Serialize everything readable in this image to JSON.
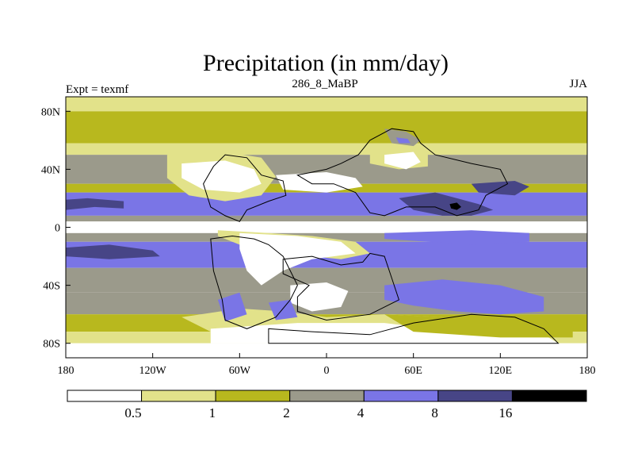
{
  "chart_data": {
    "type": "heatmap",
    "title": "Precipitation (in mm/day)",
    "left_label": "Expt = texmf",
    "center_label": "286_8_MaBP",
    "right_label": "JJA",
    "x_ticks": [
      {
        "value": -180,
        "label": "180"
      },
      {
        "value": -120,
        "label": "120W"
      },
      {
        "value": -60,
        "label": "60W"
      },
      {
        "value": 0,
        "label": "0"
      },
      {
        "value": 60,
        "label": "60E"
      },
      {
        "value": 120,
        "label": "120E"
      },
      {
        "value": 180,
        "label": "180"
      }
    ],
    "y_ticks": [
      {
        "value": 80,
        "label": "80N"
      },
      {
        "value": 40,
        "label": "40N"
      },
      {
        "value": 0,
        "label": "0"
      },
      {
        "value": -40,
        "label": "40S"
      },
      {
        "value": -80,
        "label": "80S"
      }
    ],
    "xlim": [
      -180,
      180
    ],
    "ylim": [
      -90,
      90
    ],
    "levels": [
      "0.5",
      "1",
      "2",
      "4",
      "8",
      "16"
    ],
    "colors": [
      "#ffffff",
      "#e2e28a",
      "#b8b81e",
      "#9b9a8b",
      "#7a75e6",
      "#474586",
      "#000000"
    ],
    "field": {
      "lat_bands": [
        {
          "lat": [
            80,
            90
          ],
          "level": 1
        },
        {
          "lat": [
            58,
            80
          ],
          "level": 2
        },
        {
          "lat": [
            50,
            58
          ],
          "level": 1
        },
        {
          "lat": [
            30,
            50
          ],
          "level": 3
        },
        {
          "lat": [
            24,
            30
          ],
          "level": 2
        },
        {
          "lat": [
            8,
            24
          ],
          "level": 4
        },
        {
          "lat": [
            4,
            8
          ],
          "level": 3
        },
        {
          "lat": [
            -4,
            4
          ],
          "level": 0
        },
        {
          "lat": [
            -10,
            -4
          ],
          "level": 3
        },
        {
          "lat": [
            -28,
            -10
          ],
          "level": 4
        },
        {
          "lat": [
            -45,
            -28
          ],
          "level": 3
        },
        {
          "lat": [
            -60,
            -45
          ],
          "level": 3
        },
        {
          "lat": [
            -72,
            -60
          ],
          "level": 2
        },
        {
          "lat": [
            -80,
            -72
          ],
          "level": 1
        },
        {
          "lat": [
            -90,
            -80
          ],
          "level": 0
        }
      ],
      "regions": [
        {
          "level": 5,
          "poly": [
            [
              -180,
              12
            ],
            [
              -160,
              14
            ],
            [
              -140,
              13
            ],
            [
              -140,
              18
            ],
            [
              -165,
              20
            ],
            [
              -180,
              19
            ]
          ]
        },
        {
          "level": 5,
          "poly": [
            [
              -180,
              -14
            ],
            [
              -150,
              -12
            ],
            [
              -120,
              -16
            ],
            [
              -115,
              -20
            ],
            [
              -150,
              -22
            ],
            [
              -180,
              -20
            ]
          ]
        },
        {
          "level": 1,
          "poly": [
            [
              -110,
              50
            ],
            [
              -70,
              52
            ],
            [
              -45,
              48
            ],
            [
              -35,
              35
            ],
            [
              -45,
              22
            ],
            [
              -70,
              18
            ],
            [
              -95,
              22
            ],
            [
              -110,
              34
            ]
          ]
        },
        {
          "level": 0,
          "poly": [
            [
              -100,
              44
            ],
            [
              -70,
              46
            ],
            [
              -50,
              40
            ],
            [
              -45,
              30
            ],
            [
              -60,
              24
            ],
            [
              -85,
              26
            ],
            [
              -100,
              34
            ]
          ]
        },
        {
          "level": 0,
          "poly": [
            [
              -35,
              36
            ],
            [
              0,
              38
            ],
            [
              20,
              34
            ],
            [
              25,
              28
            ],
            [
              0,
              24
            ],
            [
              -30,
              26
            ]
          ]
        },
        {
          "level": 1,
          "poly": [
            [
              30,
              56
            ],
            [
              50,
              58
            ],
            [
              70,
              52
            ],
            [
              70,
              42
            ],
            [
              50,
              40
            ],
            [
              30,
              44
            ]
          ]
        },
        {
          "level": 0,
          "poly": [
            [
              40,
              50
            ],
            [
              60,
              52
            ],
            [
              65,
              45
            ],
            [
              55,
              40
            ],
            [
              40,
              44
            ]
          ]
        },
        {
          "level": 3,
          "poly": [
            [
              40,
              68
            ],
            [
              55,
              66
            ],
            [
              65,
              60
            ],
            [
              60,
              56
            ],
            [
              45,
              58
            ]
          ]
        },
        {
          "level": 4,
          "poly": [
            [
              48,
              62
            ],
            [
              56,
              61
            ],
            [
              58,
              58
            ],
            [
              50,
              58
            ]
          ]
        },
        {
          "level": 5,
          "poly": [
            [
              50,
              20
            ],
            [
              75,
              24
            ],
            [
              90,
              20
            ],
            [
              105,
              16
            ],
            [
              115,
              12
            ],
            [
              100,
              8
            ],
            [
              80,
              8
            ],
            [
              60,
              12
            ]
          ]
        },
        {
          "level": 6,
          "poly": [
            [
              85,
              16
            ],
            [
              90,
              17
            ],
            [
              93,
              14
            ],
            [
              90,
              12
            ],
            [
              86,
              13
            ]
          ]
        },
        {
          "level": 5,
          "poly": [
            [
              100,
              30
            ],
            [
              130,
              32
            ],
            [
              140,
              28
            ],
            [
              130,
              22
            ],
            [
              105,
              24
            ]
          ]
        },
        {
          "level": 4,
          "poly": [
            [
              40,
              -4
            ],
            [
              100,
              -2
            ],
            [
              140,
              -4
            ],
            [
              140,
              -10
            ],
            [
              100,
              -12
            ],
            [
              40,
              -8
            ]
          ]
        },
        {
          "level": 1,
          "poly": [
            [
              -75,
              -2
            ],
            [
              -40,
              -4
            ],
            [
              -10,
              -6
            ],
            [
              20,
              -10
            ],
            [
              30,
              -18
            ],
            [
              10,
              -22
            ],
            [
              -30,
              -18
            ],
            [
              -60,
              -12
            ],
            [
              -75,
              -6
            ]
          ]
        },
        {
          "level": 0,
          "poly": [
            [
              -60,
              -4
            ],
            [
              -20,
              -6
            ],
            [
              10,
              -10
            ],
            [
              20,
              -18
            ],
            [
              -10,
              -22
            ],
            [
              -30,
              -30
            ],
            [
              -45,
              -40
            ],
            [
              -55,
              -30
            ],
            [
              -60,
              -15
            ]
          ]
        },
        {
          "level": 0,
          "poly": [
            [
              -25,
              -40
            ],
            [
              0,
              -38
            ],
            [
              15,
              -44
            ],
            [
              10,
              -55
            ],
            [
              -10,
              -58
            ],
            [
              -25,
              -52
            ]
          ]
        },
        {
          "level": 1,
          "poly": [
            [
              -100,
              -62
            ],
            [
              -60,
              -56
            ],
            [
              -30,
              -58
            ],
            [
              0,
              -62
            ],
            [
              40,
              -60
            ],
            [
              80,
              -62
            ],
            [
              90,
              -70
            ],
            [
              40,
              -74
            ],
            [
              -20,
              -74
            ],
            [
              -80,
              -72
            ]
          ]
        },
        {
          "level": 0,
          "poly": [
            [
              -80,
              -70
            ],
            [
              -20,
              -66
            ],
            [
              40,
              -66
            ],
            [
              90,
              -72
            ],
            [
              150,
              -74
            ],
            [
              160,
              -80
            ],
            [
              -80,
              -80
            ]
          ]
        },
        {
          "level": 4,
          "poly": [
            [
              -75,
              -50
            ],
            [
              -60,
              -45
            ],
            [
              -55,
              -60
            ],
            [
              -70,
              -65
            ]
          ]
        },
        {
          "level": 4,
          "poly": [
            [
              -40,
              -52
            ],
            [
              -25,
              -50
            ],
            [
              -20,
              -62
            ],
            [
              -35,
              -64
            ]
          ]
        },
        {
          "level": 4,
          "poly": [
            [
              40,
              -40
            ],
            [
              80,
              -36
            ],
            [
              120,
              -40
            ],
            [
              150,
              -48
            ],
            [
              150,
              -58
            ],
            [
              120,
              -60
            ],
            [
              90,
              -58
            ],
            [
              60,
              -54
            ],
            [
              40,
              -50
            ]
          ]
        },
        {
          "level": 2,
          "poly": [
            [
              40,
              -60
            ],
            [
              80,
              -62
            ],
            [
              130,
              -64
            ],
            [
              170,
              -70
            ],
            [
              170,
              -76
            ],
            [
              120,
              -76
            ],
            [
              60,
              -72
            ]
          ]
        },
        {
          "level": 0,
          "poly": [
            [
              145,
              2
            ],
            [
              175,
              2
            ],
            [
              180,
              0
            ],
            [
              175,
              -3
            ],
            [
              150,
              -3
            ]
          ]
        },
        {
          "level": 0,
          "poly": [
            [
              -180,
              3
            ],
            [
              -160,
              3
            ],
            [
              -130,
              1
            ],
            [
              -150,
              -3
            ],
            [
              -180,
              -3
            ]
          ]
        }
      ]
    },
    "coastlines": [
      {
        "name": "north-america",
        "poly": [
          [
            -70,
            50
          ],
          [
            -55,
            48
          ],
          [
            -45,
            36
          ],
          [
            -30,
            32
          ],
          [
            -28,
            22
          ],
          [
            -40,
            18
          ],
          [
            -55,
            12
          ],
          [
            -60,
            4
          ],
          [
            -70,
            8
          ],
          [
            -80,
            14
          ],
          [
            -85,
            30
          ],
          [
            -78,
            42
          ]
        ]
      },
      {
        "name": "eurasia",
        "poly": [
          [
            -20,
            36
          ],
          [
            0,
            40
          ],
          [
            10,
            44
          ],
          [
            22,
            50
          ],
          [
            30,
            60
          ],
          [
            45,
            68
          ],
          [
            60,
            66
          ],
          [
            65,
            58
          ],
          [
            75,
            50
          ],
          [
            100,
            44
          ],
          [
            120,
            40
          ],
          [
            125,
            30
          ],
          [
            110,
            22
          ],
          [
            105,
            12
          ],
          [
            90,
            8
          ],
          [
            75,
            14
          ],
          [
            55,
            14
          ],
          [
            40,
            8
          ],
          [
            30,
            10
          ],
          [
            20,
            24
          ],
          [
            5,
            30
          ],
          [
            -10,
            30
          ]
        ]
      },
      {
        "name": "south-america",
        "poly": [
          [
            -80,
            -8
          ],
          [
            -65,
            -6
          ],
          [
            -50,
            -8
          ],
          [
            -40,
            -12
          ],
          [
            -30,
            -20
          ],
          [
            -20,
            -40
          ],
          [
            -25,
            -50
          ],
          [
            -35,
            -62
          ],
          [
            -55,
            -70
          ],
          [
            -70,
            -64
          ],
          [
            -72,
            -50
          ],
          [
            -78,
            -30
          ]
        ]
      },
      {
        "name": "africa",
        "poly": [
          [
            -30,
            -22
          ],
          [
            -10,
            -20
          ],
          [
            10,
            -26
          ],
          [
            25,
            -24
          ],
          [
            30,
            -18
          ],
          [
            40,
            -20
          ],
          [
            45,
            -35
          ],
          [
            50,
            -50
          ],
          [
            30,
            -60
          ],
          [
            0,
            -64
          ],
          [
            -20,
            -58
          ],
          [
            -20,
            -48
          ],
          [
            -12,
            -40
          ],
          [
            -30,
            -32
          ]
        ]
      },
      {
        "name": "antarctica",
        "poly": [
          [
            -40,
            -70
          ],
          [
            -10,
            -72
          ],
          [
            30,
            -74
          ],
          [
            60,
            -66
          ],
          [
            100,
            -60
          ],
          [
            130,
            -62
          ],
          [
            150,
            -70
          ],
          [
            160,
            -80
          ],
          [
            -40,
            -80
          ]
        ]
      }
    ]
  }
}
